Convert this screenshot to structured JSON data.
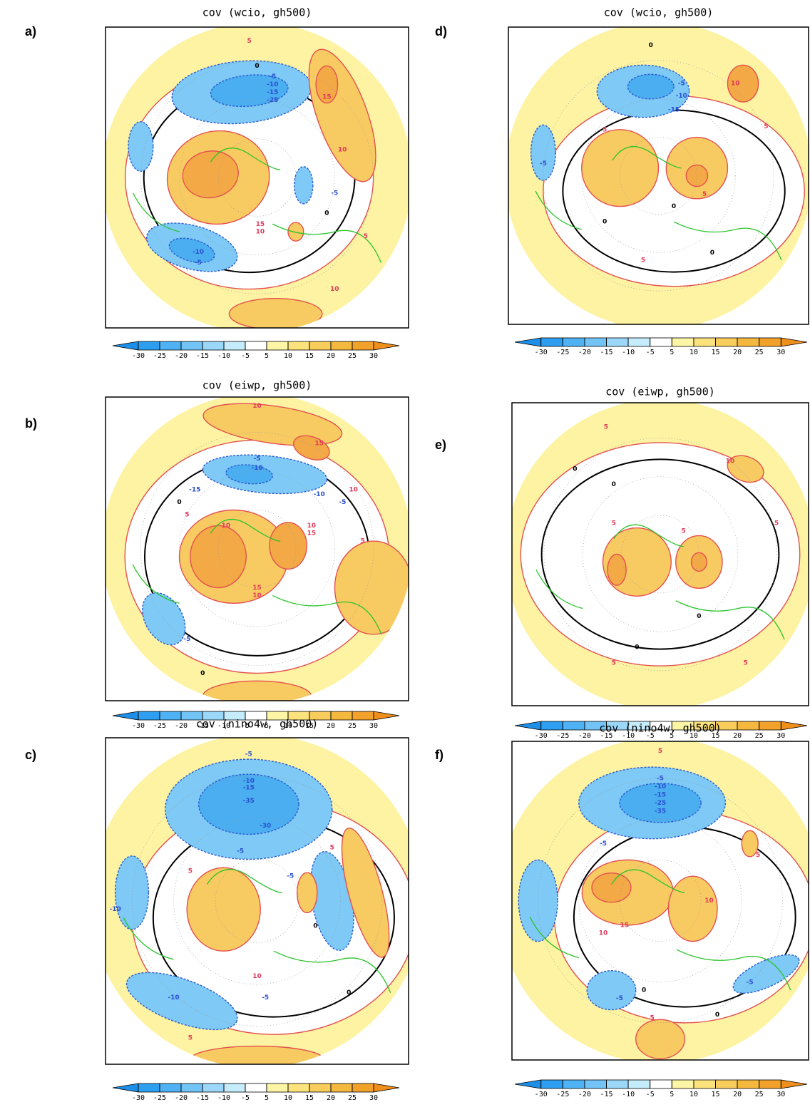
{
  "panels": [
    {
      "label": "a)",
      "title": "cov (wcio, gh500)",
      "contour_labels": [
        5,
        15,
        10,
        -5,
        -10,
        -15,
        -25,
        0,
        15,
        10,
        -10,
        -5,
        0,
        10,
        5,
        -5
      ]
    },
    {
      "label": "b)",
      "title": "cov (eiwp, gh500)",
      "contour_labels": [
        10,
        15,
        10,
        -5,
        -10,
        -15,
        -10,
        -5,
        5,
        10,
        10,
        15,
        15,
        10,
        -5,
        0,
        0,
        5
      ]
    },
    {
      "label": "c)",
      "title": "cov (nino4w, gh500)",
      "contour_labels": [
        -5,
        -10,
        -15,
        -35,
        -30,
        -5,
        -10,
        -10,
        5,
        5,
        10,
        0,
        0,
        -5,
        -5,
        5
      ]
    },
    {
      "label": "d)",
      "title": "cov (wcio, gh500)",
      "contour_labels": [
        0,
        -5,
        -10,
        -15,
        10,
        5,
        5,
        0,
        -5,
        0,
        5,
        0,
        5
      ]
    },
    {
      "label": "e)",
      "title": "cov (eiwp, gh500)",
      "contour_labels": [
        5,
        0,
        10,
        5,
        0,
        5,
        5,
        0,
        0,
        5,
        5
      ]
    },
    {
      "label": "f)",
      "title": "cov (nino4w, gh500)",
      "contour_labels": [
        5,
        -5,
        -10,
        -15,
        -25,
        -35,
        -5,
        15,
        10,
        10,
        5,
        -5,
        -5,
        0,
        0,
        5
      ]
    }
  ],
  "colorbar": {
    "levels": [
      -30,
      -25,
      -20,
      -15,
      -10,
      -5,
      5,
      10,
      15,
      20,
      25,
      30
    ],
    "colors": [
      "#1e8fe8",
      "#2e9ff0",
      "#4fb2f4",
      "#72c4f6",
      "#9ad7f8",
      "#c4ecfb",
      "#ffffff",
      "#fdf5a6",
      "#fbe27c",
      "#f8cd5c",
      "#f5b83f",
      "#f2a22b",
      "#ef8f1c"
    ]
  }
}
